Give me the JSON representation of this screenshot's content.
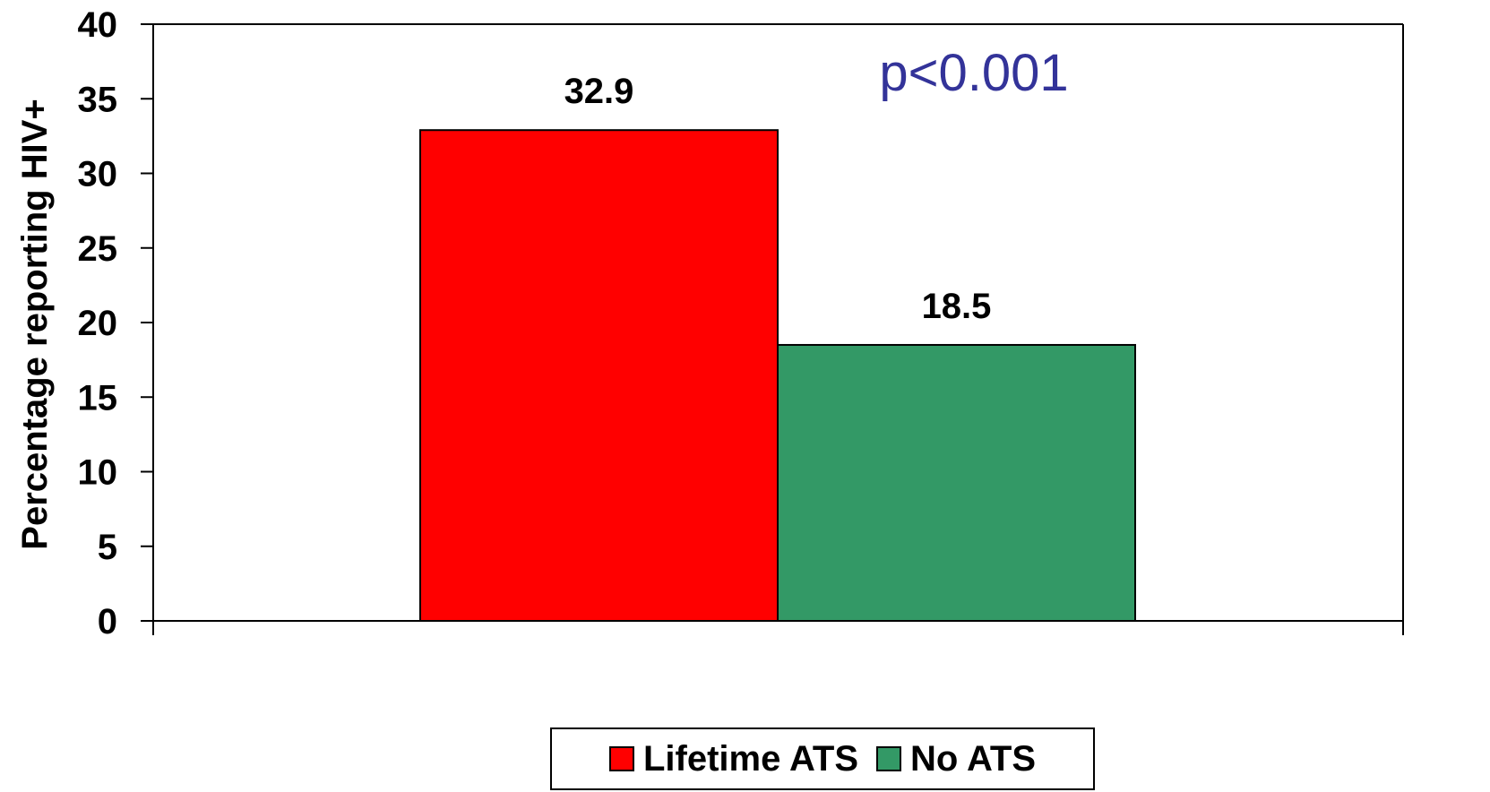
{
  "chart_data": {
    "type": "bar",
    "categories": [
      ""
    ],
    "series": [
      {
        "name": "Lifetime ATS",
        "values": [
          32.9
        ],
        "color": "#FF0000",
        "label": "32.9"
      },
      {
        "name": "No ATS",
        "values": [
          18.5
        ],
        "color": "#339966",
        "label": "18.5"
      }
    ],
    "ylabel": "Percentage reporting HIV+",
    "xlabel": "",
    "ylim": [
      0,
      40
    ],
    "yticks": [
      "0",
      "5",
      "10",
      "15",
      "20",
      "25",
      "30",
      "35",
      "40"
    ],
    "annotation": "p<0.001",
    "annotation_color": "#333399",
    "grid": false,
    "legend_position": "bottom"
  }
}
